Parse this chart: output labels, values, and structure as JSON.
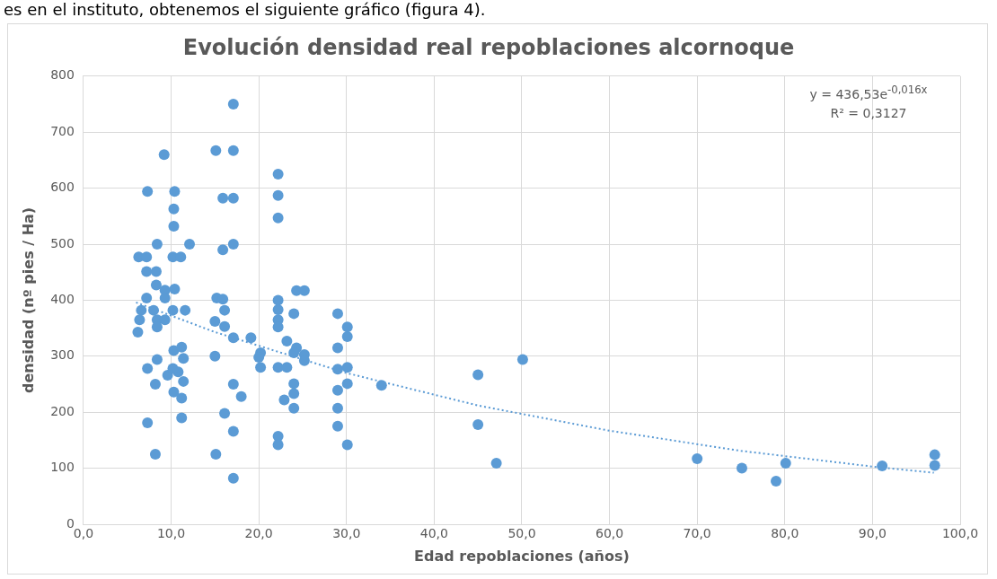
{
  "chart_data": {
    "type": "scatter",
    "title": "Evolución densidad real repoblaciones alcornoque",
    "xlabel": "Edad repoblaciones (años)",
    "ylabel": "densidad (nº pies / Ha)",
    "annotations": [
      "es en el instituto, obtenemos el siguiente gráfico (figura 4).",
      "y = 436,53e$^{-0,016x}$",
      "R² = 0,3127"
    ],
    "xlim": [
      0,
      100
    ],
    "xticks": [
      {
        "value": 0,
        "label": "0,0"
      },
      {
        "value": 10,
        "label": "10,0"
      },
      {
        "value": 20,
        "label": "20,0"
      },
      {
        "value": 30,
        "label": "30,0"
      },
      {
        "value": 40,
        "label": "40,0"
      },
      {
        "value": 50,
        "label": "50,0"
      },
      {
        "value": 60,
        "label": "60,0"
      },
      {
        "value": 70,
        "label": "70,0"
      },
      {
        "value": 80,
        "label": "80,0"
      },
      {
        "value": 90,
        "label": "90,0"
      },
      {
        "value": 100,
        "label": "100,0"
      }
    ],
    "ylim": [
      0,
      800
    ],
    "yticks": [
      0,
      100,
      200,
      300,
      400,
      500,
      600,
      700,
      800
    ],
    "grid": true,
    "marker": "circle",
    "series": [
      {
        "type": "scatter",
        "color": "#5b9bd5",
        "x": [
          17.1,
          9.2,
          15.1,
          17.1,
          7.3,
          10.4,
          10.3,
          10.3,
          15.9,
          17.1,
          8.4,
          12.1,
          15.9,
          17.1,
          6.3,
          7.2,
          10.2,
          11.1,
          7.2,
          8.3,
          8.3,
          9.3,
          10.4,
          7.2,
          9.3,
          15.2,
          15.9,
          6.6,
          8.0,
          10.2,
          11.6,
          16.1,
          6.4,
          8.4,
          9.3,
          6.2,
          8.4,
          15.0,
          16.1,
          17.1,
          19.1,
          20.2,
          20.2,
          10.3,
          11.2,
          15.0,
          8.4,
          7.3,
          9.6,
          10.8,
          11.4,
          10.2,
          11.4,
          8.2,
          10.3,
          11.2,
          17.1,
          18.0,
          16.1,
          7.3,
          11.2,
          17.1,
          8.2,
          15.1,
          17.1,
          22.2,
          22.2,
          22.2,
          24.3,
          25.2,
          22.2,
          22.2,
          22.2,
          22.2,
          24.0,
          29.0,
          30.1,
          30.1,
          29.0,
          20.0,
          23.2,
          24.3,
          25.2,
          25.2,
          22.2,
          23.2,
          24.0,
          29.0,
          30.1,
          30.1,
          29.0,
          34.0,
          24.0,
          22.9,
          24.0,
          24.0,
          29.0,
          29.0,
          22.2,
          22.2,
          30.1,
          45.0,
          45.0,
          50.1,
          47.1,
          70.0,
          75.1,
          79.0,
          80.1,
          91.1,
          97.1,
          97.1
        ],
        "values": [
          750,
          660,
          667,
          667,
          594,
          594,
          563,
          532,
          582,
          582,
          500,
          500,
          490,
          500,
          477,
          477,
          477,
          477,
          451,
          451,
          427,
          418,
          420,
          404,
          404,
          404,
          402,
          382,
          382,
          382,
          382,
          382,
          365,
          365,
          365,
          343,
          352,
          362,
          353,
          333,
          333,
          306,
          280,
          310,
          316,
          300,
          294,
          278,
          266,
          272,
          296,
          278,
          255,
          250,
          236,
          225,
          250,
          228,
          198,
          181,
          190,
          166,
          125,
          125,
          82,
          625,
          587,
          547,
          417,
          417,
          400,
          383,
          365,
          352,
          376,
          376,
          352,
          335,
          315,
          298,
          327,
          315,
          303,
          292,
          280,
          280,
          306,
          277,
          280,
          251,
          239,
          248,
          251,
          222,
          233,
          207,
          207,
          175,
          157,
          142,
          142,
          267,
          178,
          294,
          109,
          117,
          100,
          77,
          109,
          104,
          124,
          105
        ]
      },
      {
        "type": "line",
        "color": "#5b9bd5",
        "line_style": "dotted",
        "marker": "none",
        "x": [
          6,
          15,
          30,
          45,
          60,
          75,
          90,
          97
        ],
        "values": [
          396,
          343,
          270,
          212,
          167,
          131,
          103,
          92
        ]
      }
    ]
  }
}
